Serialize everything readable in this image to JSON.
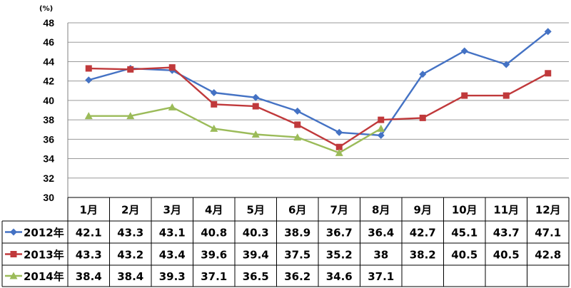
{
  "chart_data": {
    "type": "line",
    "unit_label": "(%)",
    "categories": [
      "1月",
      "2月",
      "3月",
      "4月",
      "5月",
      "6月",
      "7月",
      "8月",
      "9月",
      "10月",
      "11月",
      "12月"
    ],
    "ylim": [
      30,
      48
    ],
    "yticks": [
      30,
      32,
      34,
      36,
      38,
      40,
      42,
      44,
      46,
      48
    ],
    "grid": true,
    "legend_placement": "data-table-left",
    "series": [
      {
        "name": "2012年",
        "color": "#4472C4",
        "marker": "diamond",
        "values": [
          42.1,
          43.3,
          43.1,
          40.8,
          40.3,
          38.9,
          36.7,
          36.4,
          42.7,
          45.1,
          43.7,
          47.1
        ],
        "labels": [
          "42.1",
          "43.3",
          "43.1",
          "40.8",
          "40.3",
          "38.9",
          "36.7",
          "36.4",
          "42.7",
          "45.1",
          "43.7",
          "47.1"
        ]
      },
      {
        "name": "2013年",
        "color": "#C0393B",
        "marker": "square",
        "values": [
          43.3,
          43.2,
          43.4,
          39.6,
          39.4,
          37.5,
          35.2,
          38,
          38.2,
          40.5,
          40.5,
          42.8
        ],
        "labels": [
          "43.3",
          "43.2",
          "43.4",
          "39.6",
          "39.4",
          "37.5",
          "35.2",
          "38",
          "38.2",
          "40.5",
          "40.5",
          "42.8"
        ]
      },
      {
        "name": "2014年",
        "color": "#9BBB59",
        "marker": "triangle",
        "values": [
          38.4,
          38.4,
          39.3,
          37.1,
          36.5,
          36.2,
          34.6,
          37.1,
          null,
          null,
          null,
          null
        ],
        "labels": [
          "38.4",
          "38.4",
          "39.3",
          "37.1",
          "36.5",
          "36.2",
          "34.6",
          "37.1",
          "",
          "",
          "",
          ""
        ]
      }
    ]
  }
}
